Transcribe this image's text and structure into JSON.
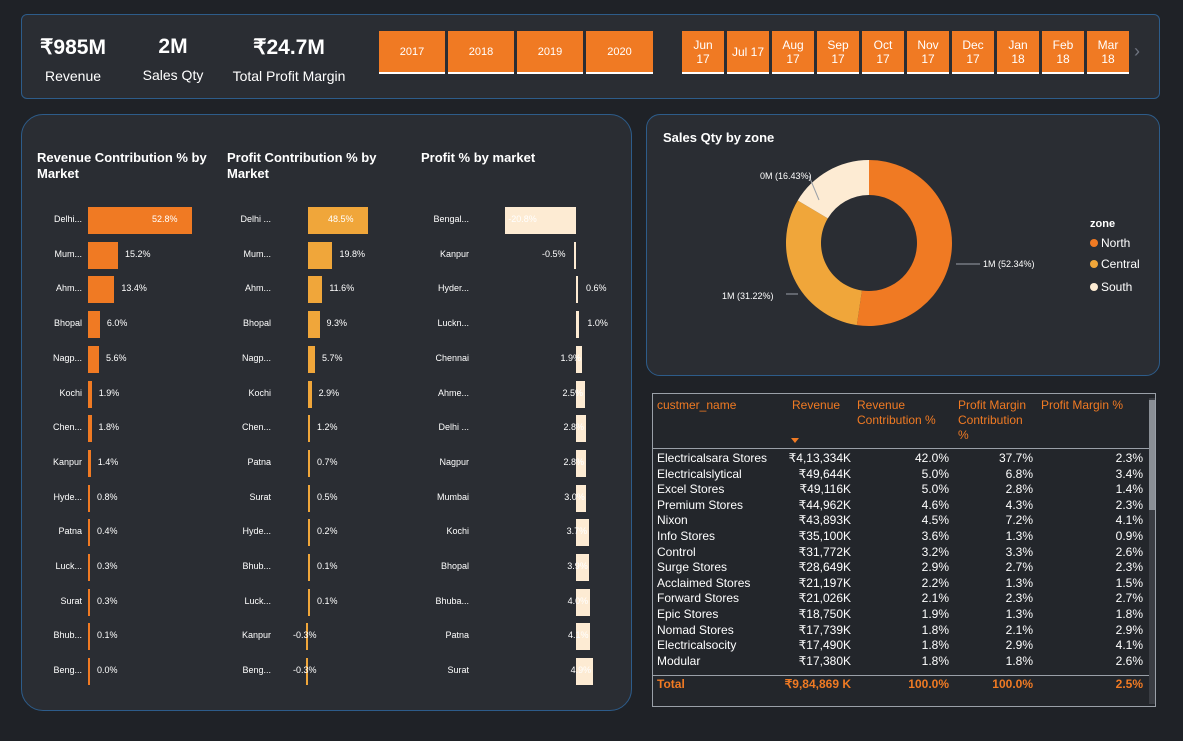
{
  "kpis": [
    {
      "value": "₹985M",
      "label": "Revenue"
    },
    {
      "value": "2M",
      "label": "Sales Qty"
    },
    {
      "value": "₹24.7M",
      "label": "Total Profit Margin"
    }
  ],
  "years": [
    "2017",
    "2018",
    "2019",
    "2020"
  ],
  "months": [
    [
      "Jun",
      "17"
    ],
    [
      "Jul 17",
      ""
    ],
    [
      "Aug",
      "17"
    ],
    [
      "Sep",
      "17"
    ],
    [
      "Oct",
      "17"
    ],
    [
      "Nov",
      "17"
    ],
    [
      "Dec",
      "17"
    ],
    [
      "Jan",
      "18"
    ],
    [
      "Feb",
      "18"
    ],
    [
      "Mar",
      "18"
    ]
  ],
  "next_icon": "chevron-right-icon",
  "colors": {
    "accent": "#f07a23",
    "north": "#f07a23",
    "central": "#f0a63a",
    "south": "#fdebd3",
    "border": "#2d5c8a"
  },
  "chart_data": [
    {
      "type": "bar",
      "orientation": "horizontal",
      "title": "Revenue Contribution % by Market",
      "categories": [
        "Delhi...",
        "Mum...",
        "Ahm...",
        "Bhopal",
        "Nagp...",
        "Kochi",
        "Chen...",
        "Kanpur",
        "Hyde...",
        "Patna",
        "Luck...",
        "Surat",
        "Bhub...",
        "Beng..."
      ],
      "values": [
        52.8,
        15.2,
        13.4,
        6.0,
        5.6,
        1.9,
        1.8,
        1.4,
        0.8,
        0.4,
        0.3,
        0.3,
        0.1,
        0.0
      ],
      "labels": [
        "52.8%",
        "15.2%",
        "13.4%",
        "6.0%",
        "5.6%",
        "1.9%",
        "1.8%",
        "1.4%",
        "0.8%",
        "0.4%",
        "0.3%",
        "0.3%",
        "0.1%",
        "0.0%"
      ],
      "color": "#f07a23"
    },
    {
      "type": "bar",
      "orientation": "horizontal",
      "title": "Profit Contribution % by Market",
      "categories": [
        "Delhi ...",
        "Mum...",
        "Ahm...",
        "Bhopal",
        "Nagp...",
        "Kochi",
        "Chen...",
        "Patna",
        "Surat",
        "Hyde...",
        "Bhub...",
        "Luck...",
        "Kanpur",
        "Beng..."
      ],
      "values": [
        48.5,
        19.8,
        11.6,
        9.3,
        5.7,
        2.9,
        1.2,
        0.7,
        0.5,
        0.2,
        0.1,
        0.1,
        -0.3,
        -0.3
      ],
      "labels": [
        "48.5%",
        "19.8%",
        "11.6%",
        "9.3%",
        "5.7%",
        "2.9%",
        "1.2%",
        "0.7%",
        "0.5%",
        "0.2%",
        "0.1%",
        "0.1%",
        "-0.3%",
        "-0.3%"
      ],
      "color": "#f0a63a"
    },
    {
      "type": "bar",
      "orientation": "horizontal",
      "title": "Profit % by market",
      "categories": [
        "Bengal...",
        "Kanpur",
        "Hyder...",
        "Luckn...",
        "Chennai",
        "Ahme...",
        "Delhi ...",
        "Nagpur",
        "Mumbai",
        "Kochi",
        "Bhopal",
        "Bhuba...",
        "Patna",
        "Surat"
      ],
      "values": [
        -20.8,
        -0.5,
        0.6,
        1.0,
        1.9,
        2.5,
        2.8,
        2.8,
        3.0,
        3.7,
        3.9,
        4.0,
        4.1,
        4.9
      ],
      "labels": [
        "-20.8%",
        "-0.5%",
        "0.6%",
        "1.0%",
        "1.9%",
        "2.5%",
        "2.8%",
        "2.8%",
        "3.0%",
        "3.7%",
        "3.9%",
        "4.0%",
        "4.1%",
        "4.9%"
      ],
      "color": "#fdebd3"
    },
    {
      "type": "pie",
      "donut": true,
      "title": "Sales Qty by zone",
      "legend_title": "zone",
      "legend_position": "right",
      "slices": [
        {
          "name": "North",
          "value": 52.34,
          "label": "1M (52.34%)"
        },
        {
          "name": "Central",
          "value": 31.22,
          "label": "1M (31.22%)"
        },
        {
          "name": "South",
          "value": 16.43,
          "label": "0M (16.43%)"
        }
      ]
    },
    {
      "type": "table",
      "columns": [
        "custmer_name",
        "Revenue",
        "Revenue Contribution %",
        "Profit Margin Contribution %",
        "Profit Margin %"
      ],
      "sort_column": "Revenue",
      "rows": [
        [
          "Electricalsara Stores",
          "₹4,13,334K",
          "42.0%",
          "37.7%",
          "2.3%"
        ],
        [
          "Electricalslytical",
          "₹49,644K",
          "5.0%",
          "6.8%",
          "3.4%"
        ],
        [
          "Excel Stores",
          "₹49,116K",
          "5.0%",
          "2.8%",
          "1.4%"
        ],
        [
          "Premium Stores",
          "₹44,962K",
          "4.6%",
          "4.3%",
          "2.3%"
        ],
        [
          "Nixon",
          "₹43,893K",
          "4.5%",
          "7.2%",
          "4.1%"
        ],
        [
          "Info Stores",
          "₹35,100K",
          "3.6%",
          "1.3%",
          "0.9%"
        ],
        [
          "Control",
          "₹31,772K",
          "3.2%",
          "3.3%",
          "2.6%"
        ],
        [
          "Surge Stores",
          "₹28,649K",
          "2.9%",
          "2.7%",
          "2.3%"
        ],
        [
          "Acclaimed Stores",
          "₹21,197K",
          "2.2%",
          "1.3%",
          "1.5%"
        ],
        [
          "Forward Stores",
          "₹21,026K",
          "2.1%",
          "2.3%",
          "2.7%"
        ],
        [
          "Epic Stores",
          "₹18,750K",
          "1.9%",
          "1.3%",
          "1.8%"
        ],
        [
          "Nomad Stores",
          "₹17,739K",
          "1.8%",
          "2.1%",
          "2.9%"
        ],
        [
          "Electricalsocity",
          "₹17,490K",
          "1.8%",
          "2.9%",
          "4.1%"
        ],
        [
          "Modular",
          "₹17,380K",
          "1.8%",
          "1.8%",
          "2.6%"
        ]
      ],
      "total": [
        "Total",
        "₹9,84,869 K",
        "100.0%",
        "100.0%",
        "2.5%"
      ]
    }
  ]
}
